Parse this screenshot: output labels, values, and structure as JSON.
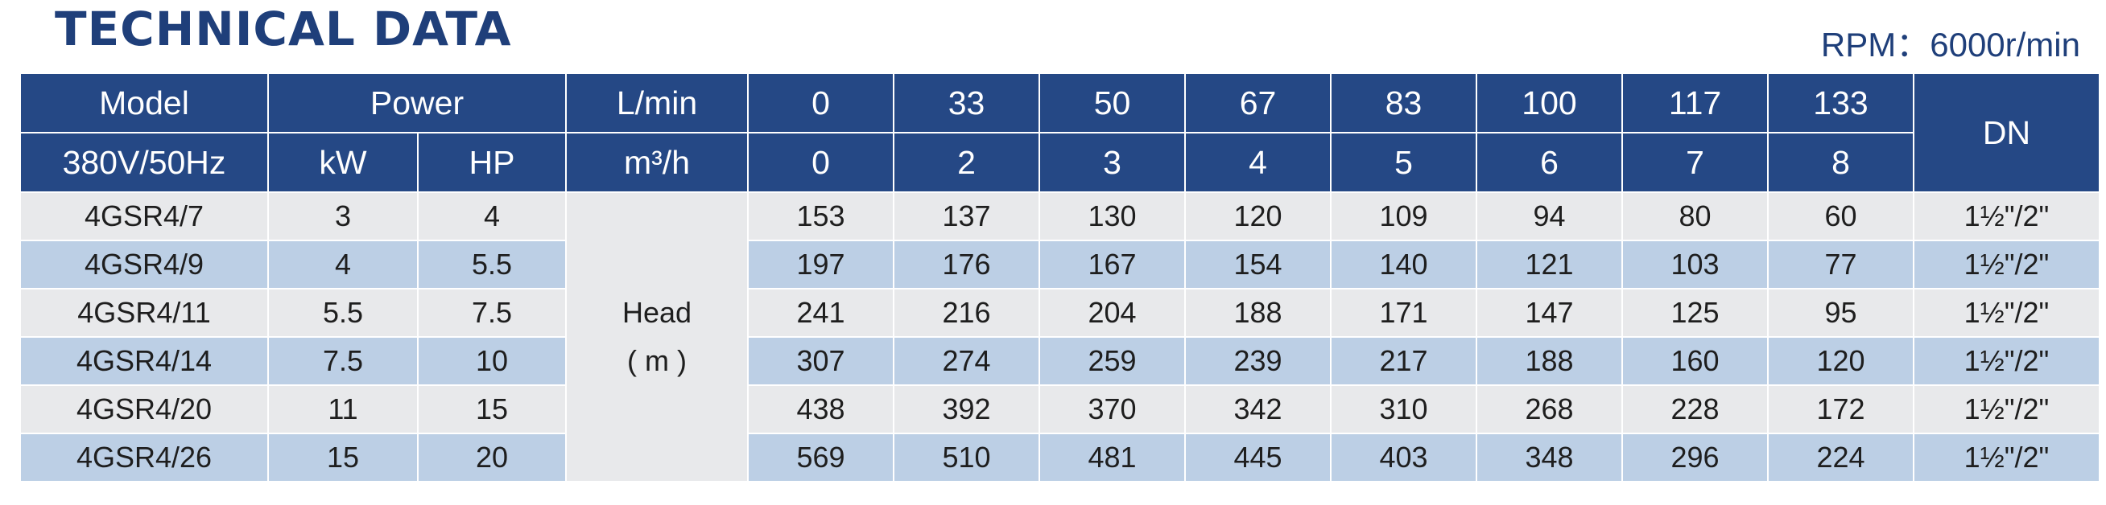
{
  "title": "TECHNICAL DATA",
  "rpm": "RPM：6000r/min",
  "header": {
    "model": "Model",
    "power": "Power",
    "flow_lmin_label": "L/min",
    "flow_lmin": [
      "0",
      "33",
      "50",
      "67",
      "83",
      "100",
      "117",
      "133"
    ],
    "dn": "DN",
    "voltage": "380V/50Hz",
    "kw": "kW",
    "hp": "HP",
    "flow_m3h_label": "m³/h",
    "flow_m3h": [
      "0",
      "2",
      "3",
      "4",
      "5",
      "6",
      "7",
      "8"
    ]
  },
  "head_label": {
    "line1": "Head",
    "line2": "( m )"
  },
  "rows": [
    {
      "model": "4GSR4/7",
      "kw": "3",
      "hp": "4",
      "head": [
        "153",
        "137",
        "130",
        "120",
        "109",
        "94",
        "80",
        "60"
      ],
      "dn": "1½\"/2\""
    },
    {
      "model": "4GSR4/9",
      "kw": "4",
      "hp": "5.5",
      "head": [
        "197",
        "176",
        "167",
        "154",
        "140",
        "121",
        "103",
        "77"
      ],
      "dn": "1½\"/2\""
    },
    {
      "model": "4GSR4/11",
      "kw": "5.5",
      "hp": "7.5",
      "head": [
        "241",
        "216",
        "204",
        "188",
        "171",
        "147",
        "125",
        "95"
      ],
      "dn": "1½\"/2\""
    },
    {
      "model": "4GSR4/14",
      "kw": "7.5",
      "hp": "10",
      "head": [
        "307",
        "274",
        "259",
        "239",
        "217",
        "188",
        "160",
        "120"
      ],
      "dn": "1½\"/2\""
    },
    {
      "model": "4GSR4/20",
      "kw": "11",
      "hp": "15",
      "head": [
        "438",
        "392",
        "370",
        "342",
        "310",
        "268",
        "228",
        "172"
      ],
      "dn": "1½\"/2\""
    },
    {
      "model": "4GSR4/26",
      "kw": "15",
      "hp": "20",
      "head": [
        "569",
        "510",
        "481",
        "445",
        "403",
        "348",
        "296",
        "224"
      ],
      "dn": "1½\"/2\""
    }
  ]
}
